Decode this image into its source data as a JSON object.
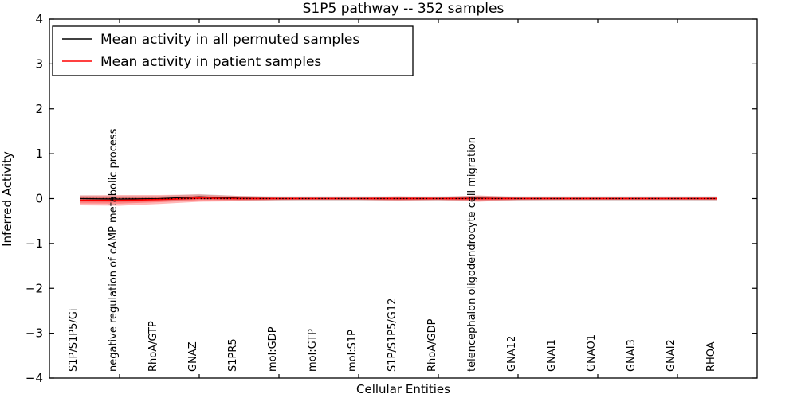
{
  "figure": {
    "title": "S1P5 pathway -- 352 samples"
  },
  "chart_data": {
    "type": "line",
    "title": "S1P5 pathway -- 352 samples",
    "xlabel": "Cellular Entities",
    "ylabel": "Inferred Activity",
    "ylim": [
      -4,
      4
    ],
    "yticks": [
      4,
      3,
      2,
      1,
      0,
      -1,
      -2,
      -3,
      -4
    ],
    "ytick_labels": [
      "4",
      "3",
      "2",
      "1",
      "0",
      "−1",
      "−2",
      "−3",
      "−4"
    ],
    "grid": false,
    "tick_direction": "in",
    "legend_position": "upper left",
    "zero_line": {
      "y": 0,
      "color": "#000000",
      "style": "dotted"
    },
    "categories": [
      "S1P/S1P5/Gi",
      "negative regulation of cAMP metabolic process",
      "RhoA/GTP",
      "GNAZ",
      "S1PR5",
      "mol:GDP",
      "mol:GTP",
      "mol:S1P",
      "S1P/S1P5/G12",
      "RhoA/GDP",
      "telencephalon oligodendrocyte cell migration",
      "GNA12",
      "GNAI1",
      "GNAO1",
      "GNAI3",
      "GNAI2",
      "RHOA"
    ],
    "series": [
      {
        "name": "Mean activity in all permuted samples",
        "color": "#000000",
        "line_style": "solid",
        "values": [
          0.0,
          -0.01,
          0.0,
          0.04,
          0.01,
          0.0,
          0.0,
          0.0,
          0.0,
          0.0,
          0.01,
          0.0,
          0.0,
          0.0,
          0.0,
          0.0,
          0.0
        ],
        "band_std": [
          0.07,
          0.07,
          0.06,
          0.06,
          0.05,
          0.05,
          0.05,
          0.05,
          0.05,
          0.05,
          0.05,
          0.05,
          0.05,
          0.05,
          0.05,
          0.05,
          0.05
        ],
        "band_color": "#bfbfbf",
        "band_opacity": 0.55
      },
      {
        "name": "Mean activity in patient samples",
        "color": "#ff0000",
        "line_style": "solid",
        "values": [
          -0.04,
          -0.04,
          -0.02,
          0.01,
          0.0,
          0.0,
          0.0,
          0.0,
          0.0,
          0.0,
          0.0,
          0.0,
          0.0,
          0.0,
          0.0,
          0.0,
          0.0
        ],
        "band_std": [
          0.11,
          0.12,
          0.1,
          0.08,
          0.06,
          0.035,
          0.03,
          0.03,
          0.05,
          0.035,
          0.07,
          0.035,
          0.03,
          0.03,
          0.03,
          0.03,
          0.035
        ],
        "band_color": "#ff0000",
        "band_opacity": 0.28
      }
    ]
  }
}
